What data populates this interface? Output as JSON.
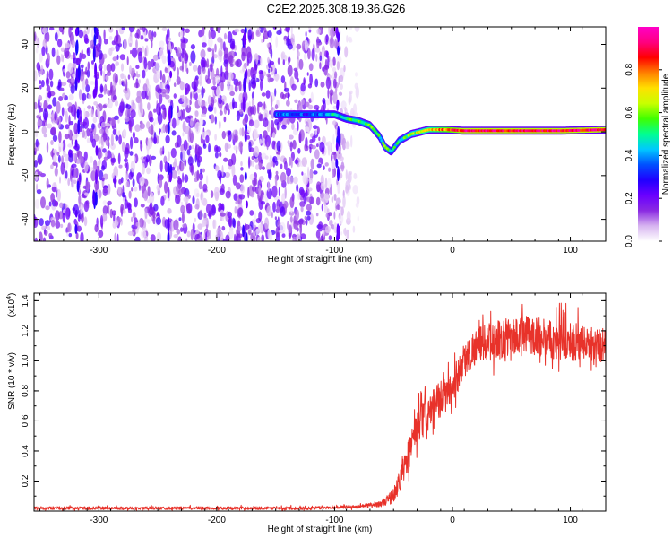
{
  "title": "C2E2.2025.308.19.36.G26",
  "chart_data": [
    {
      "type": "heatmap",
      "xlabel": "Height of straight line (km)",
      "ylabel": "Frequency (Hz)",
      "xlim": [
        -355,
        130
      ],
      "ylim": [
        -50,
        48
      ],
      "xticks": [
        -300,
        -200,
        -100,
        0,
        100
      ],
      "yticks": [
        -40,
        -20,
        0,
        20,
        40
      ],
      "grid": false,
      "colorbar": {
        "label": "Normalized spectral amplitude",
        "range": [
          0,
          1
        ],
        "ticks": [
          "0.0",
          "0.2",
          "0.4",
          "0.6",
          "0.8"
        ],
        "colors": [
          "#ffffff",
          "#d7b4f0",
          "#8a2be2",
          "#6a00ff",
          "#2000ff",
          "#0050ff",
          "#00c8ff",
          "#00ff90",
          "#40ff00",
          "#c8ff00",
          "#ffe000",
          "#ff8000",
          "#ff0000",
          "#ff0080",
          "#ff00c8"
        ]
      },
      "noise_region": {
        "x": [
          -355,
          -80
        ],
        "description_color": "#7a30f0"
      },
      "ridge": {
        "x": [
          -150,
          -130,
          -110,
          -100,
          -90,
          -80,
          -70,
          -62,
          -57,
          -52,
          -45,
          -35,
          -20,
          -5,
          10,
          30,
          60,
          90,
          130
        ],
        "y": [
          8,
          8,
          8,
          8,
          6,
          5,
          3,
          -2,
          -7,
          -9,
          -4,
          -1,
          1,
          1,
          0.5,
          0.5,
          0.5,
          0.5,
          1
        ],
        "amplitude": [
          0.35,
          0.3,
          0.35,
          0.45,
          0.5,
          0.55,
          0.55,
          0.5,
          0.55,
          0.5,
          0.5,
          0.6,
          0.7,
          0.8,
          0.9,
          0.9,
          0.9,
          0.9,
          0.9
        ]
      }
    },
    {
      "type": "line",
      "xlabel": "Height of straight line (km)",
      "ylabel": "SNR (10 * v/v)",
      "y_multiplier": "(x10",
      "y_multiplier_exp": "4",
      "y_multiplier_close": ")",
      "xlim": [
        -355,
        130
      ],
      "ylim": [
        0,
        1.45
      ],
      "xticks": [
        -300,
        -200,
        -100,
        0,
        100
      ],
      "yticks": [
        "0.2",
        "0.4",
        "0.6",
        "0.8",
        "1.0",
        "1.2",
        "1.4"
      ],
      "grid": false,
      "series": [
        {
          "color": "#e8322a",
          "x": [
            -355,
            -300,
            -200,
            -120,
            -80,
            -60,
            -50,
            -45,
            -40,
            -35,
            -30,
            -20,
            -10,
            0,
            5,
            10,
            15,
            20,
            30,
            40,
            50,
            60,
            70,
            80,
            90,
            100,
            110,
            120,
            130
          ],
          "y": [
            0.02,
            0.02,
            0.02,
            0.02,
            0.03,
            0.05,
            0.1,
            0.2,
            0.3,
            0.45,
            0.55,
            0.65,
            0.75,
            0.82,
            0.92,
            1.0,
            1.05,
            1.1,
            1.13,
            1.14,
            1.16,
            1.17,
            1.17,
            1.15,
            1.14,
            1.13,
            1.12,
            1.11,
            1.1
          ],
          "noise": [
            0.01,
            0.01,
            0.01,
            0.01,
            0.01,
            0.02,
            0.05,
            0.08,
            0.1,
            0.12,
            0.12,
            0.12,
            0.12,
            0.12,
            0.12,
            0.12,
            0.12,
            0.12,
            0.12,
            0.13,
            0.13,
            0.13,
            0.13,
            0.13,
            0.13,
            0.13,
            0.12,
            0.12,
            0.12
          ]
        }
      ]
    }
  ]
}
